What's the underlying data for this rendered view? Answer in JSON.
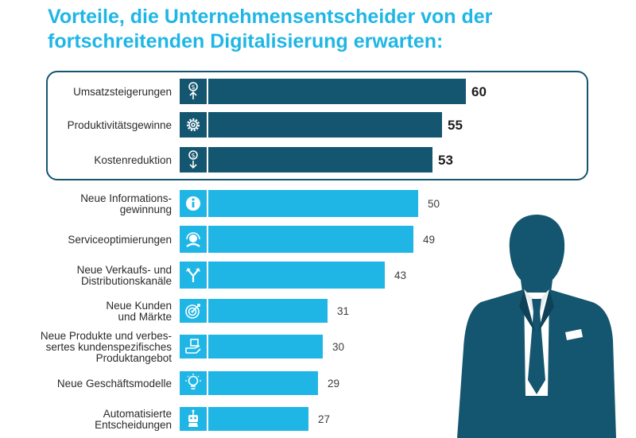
{
  "chart_data": {
    "type": "bar",
    "orientation": "horizontal",
    "title": "Vorteile, die Unternehmensentscheider von der fortschreitenden Digitalisierung erwarten:",
    "xlabel": "",
    "ylabel": "",
    "xlim": [
      0,
      60
    ],
    "categories": [
      [
        "Umsatzsteigerungen"
      ],
      [
        "Produktivitätsgewinne"
      ],
      [
        "Kostenreduktion"
      ],
      [
        "Neue Informations-",
        "gewinnung"
      ],
      [
        "Serviceoptimierungen"
      ],
      [
        "Neue Verkaufs- und",
        "Distributionskanäle"
      ],
      [
        "Neue Kunden",
        "und Märkte"
      ],
      [
        "Neue Produkte und verbes-",
        "sertes kundenspezifisches",
        "Produktangebot"
      ],
      [
        "Neue Geschäftsmodelle"
      ],
      [
        "Automatisierte",
        "Entscheidungen"
      ]
    ],
    "values": [
      60,
      55,
      53,
      50,
      49,
      43,
      31,
      30,
      29,
      27
    ],
    "highlighted_count": 3,
    "icons": [
      "dollar-up-icon",
      "gear-icon",
      "dollar-down-icon",
      "info-icon",
      "headset-icon",
      "branch-arrows-icon",
      "target-icon",
      "hand-product-icon",
      "lightbulb-icon",
      "robot-icon"
    ],
    "colors": {
      "highlight_bar": "#14566f",
      "bar": "#1fb6e6",
      "title": "#1fb6e6",
      "icon_fill": "#ffffff"
    }
  }
}
